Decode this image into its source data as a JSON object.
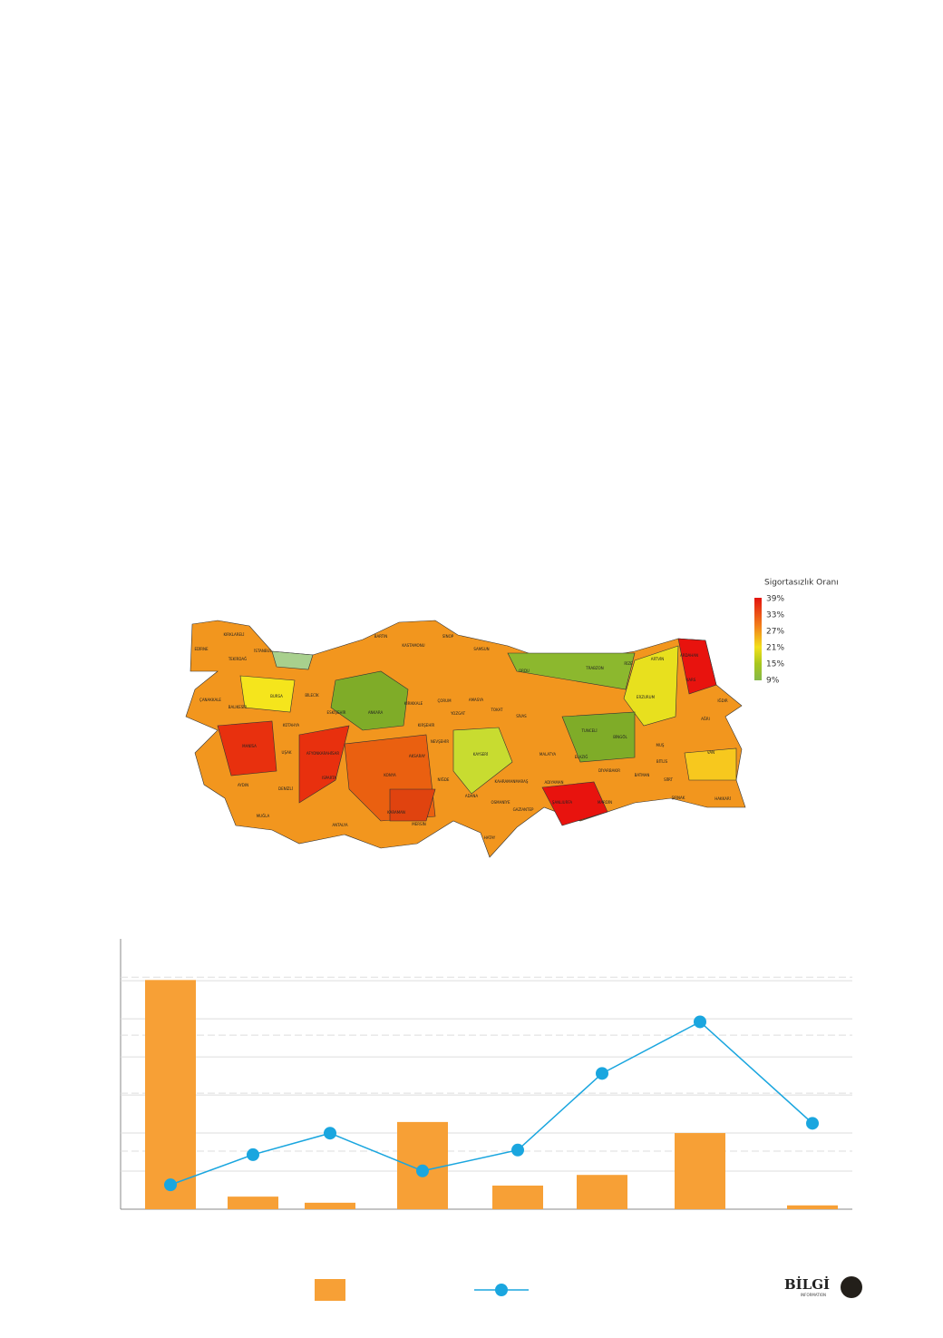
{
  "map": {
    "legend_title": "Sigortasızlık Oranı",
    "legend_ticks": [
      "39%",
      "33%",
      "27%",
      "21%",
      "15%",
      "9%"
    ],
    "labels": [
      "KIRKLARELİ",
      "EDİRNE",
      "TEKİRDAĞ",
      "İSTANBUL",
      "BARTIN",
      "KASTAMONU",
      "SİNOP",
      "SAMSUN",
      "ORDU",
      "TRABZON",
      "RİZE",
      "ARTVİN",
      "ARDAHAN",
      "KARS",
      "IĞDIR",
      "BURSA",
      "BİLECİK",
      "ESKİŞEHİR",
      "ANKARA",
      "KIRIKKALE",
      "ÇORUM",
      "AMASYA",
      "TOKAT",
      "SİVAS",
      "ERZURUM",
      "AĞRI",
      "ÇANAKKALE",
      "BALIKESİR",
      "KÜTAHYA",
      "YOZGAT",
      "KIRŞEHİR",
      "NEVŞEHİR",
      "KAYSERİ",
      "MALATYA",
      "ELAZIĞ",
      "TUNCELİ",
      "BİNGÖL",
      "MUŞ",
      "BİTLİS",
      "VAN",
      "MANİSA",
      "UŞAK",
      "AFYONKARAHİSAR",
      "AKSARAY",
      "NİĞDE",
      "KAHRAMANMARAŞ",
      "ADIYAMAN",
      "DİYARBAKIR",
      "BATMAN",
      "SİİRT",
      "AYDIN",
      "DENİZLİ",
      "ISPARTA",
      "KONYA",
      "ADANA",
      "OSMANİYE",
      "ŞANLIURFA",
      "MARDİN",
      "ŞIRNAK",
      "HAKKARİ",
      "MUĞLA",
      "ANTALYA",
      "KARAMAN",
      "MERSİN",
      "GAZİANTEP",
      "HATAY"
    ]
  },
  "chart_data": {
    "type": "bar-line",
    "categories": [
      null,
      null,
      null,
      null,
      null,
      null,
      null,
      null
    ],
    "series": [
      {
        "type": "bar",
        "color": "#f7a036",
        "values": [
          6.02,
          0.33,
          0.17,
          2.29,
          0.62,
          0.9,
          2.0,
          0.1
        ]
      },
      {
        "type": "line",
        "axis": "y2",
        "color": "#1aa6df",
        "values": [
          0.42,
          0.94,
          1.31,
          0.66,
          1.02,
          2.34,
          3.23,
          1.48
        ]
      }
    ],
    "ylim": [
      0,
      7.1
    ],
    "yticks": [
      1,
      2,
      3,
      4,
      5,
      6
    ],
    "y2lim": [
      0,
      4.66
    ],
    "y2ticks": [
      1,
      2,
      3,
      4
    ],
    "grid": true
  },
  "footer": {
    "brand": "BİLGİ",
    "brand_sub": "INFORMATION"
  }
}
